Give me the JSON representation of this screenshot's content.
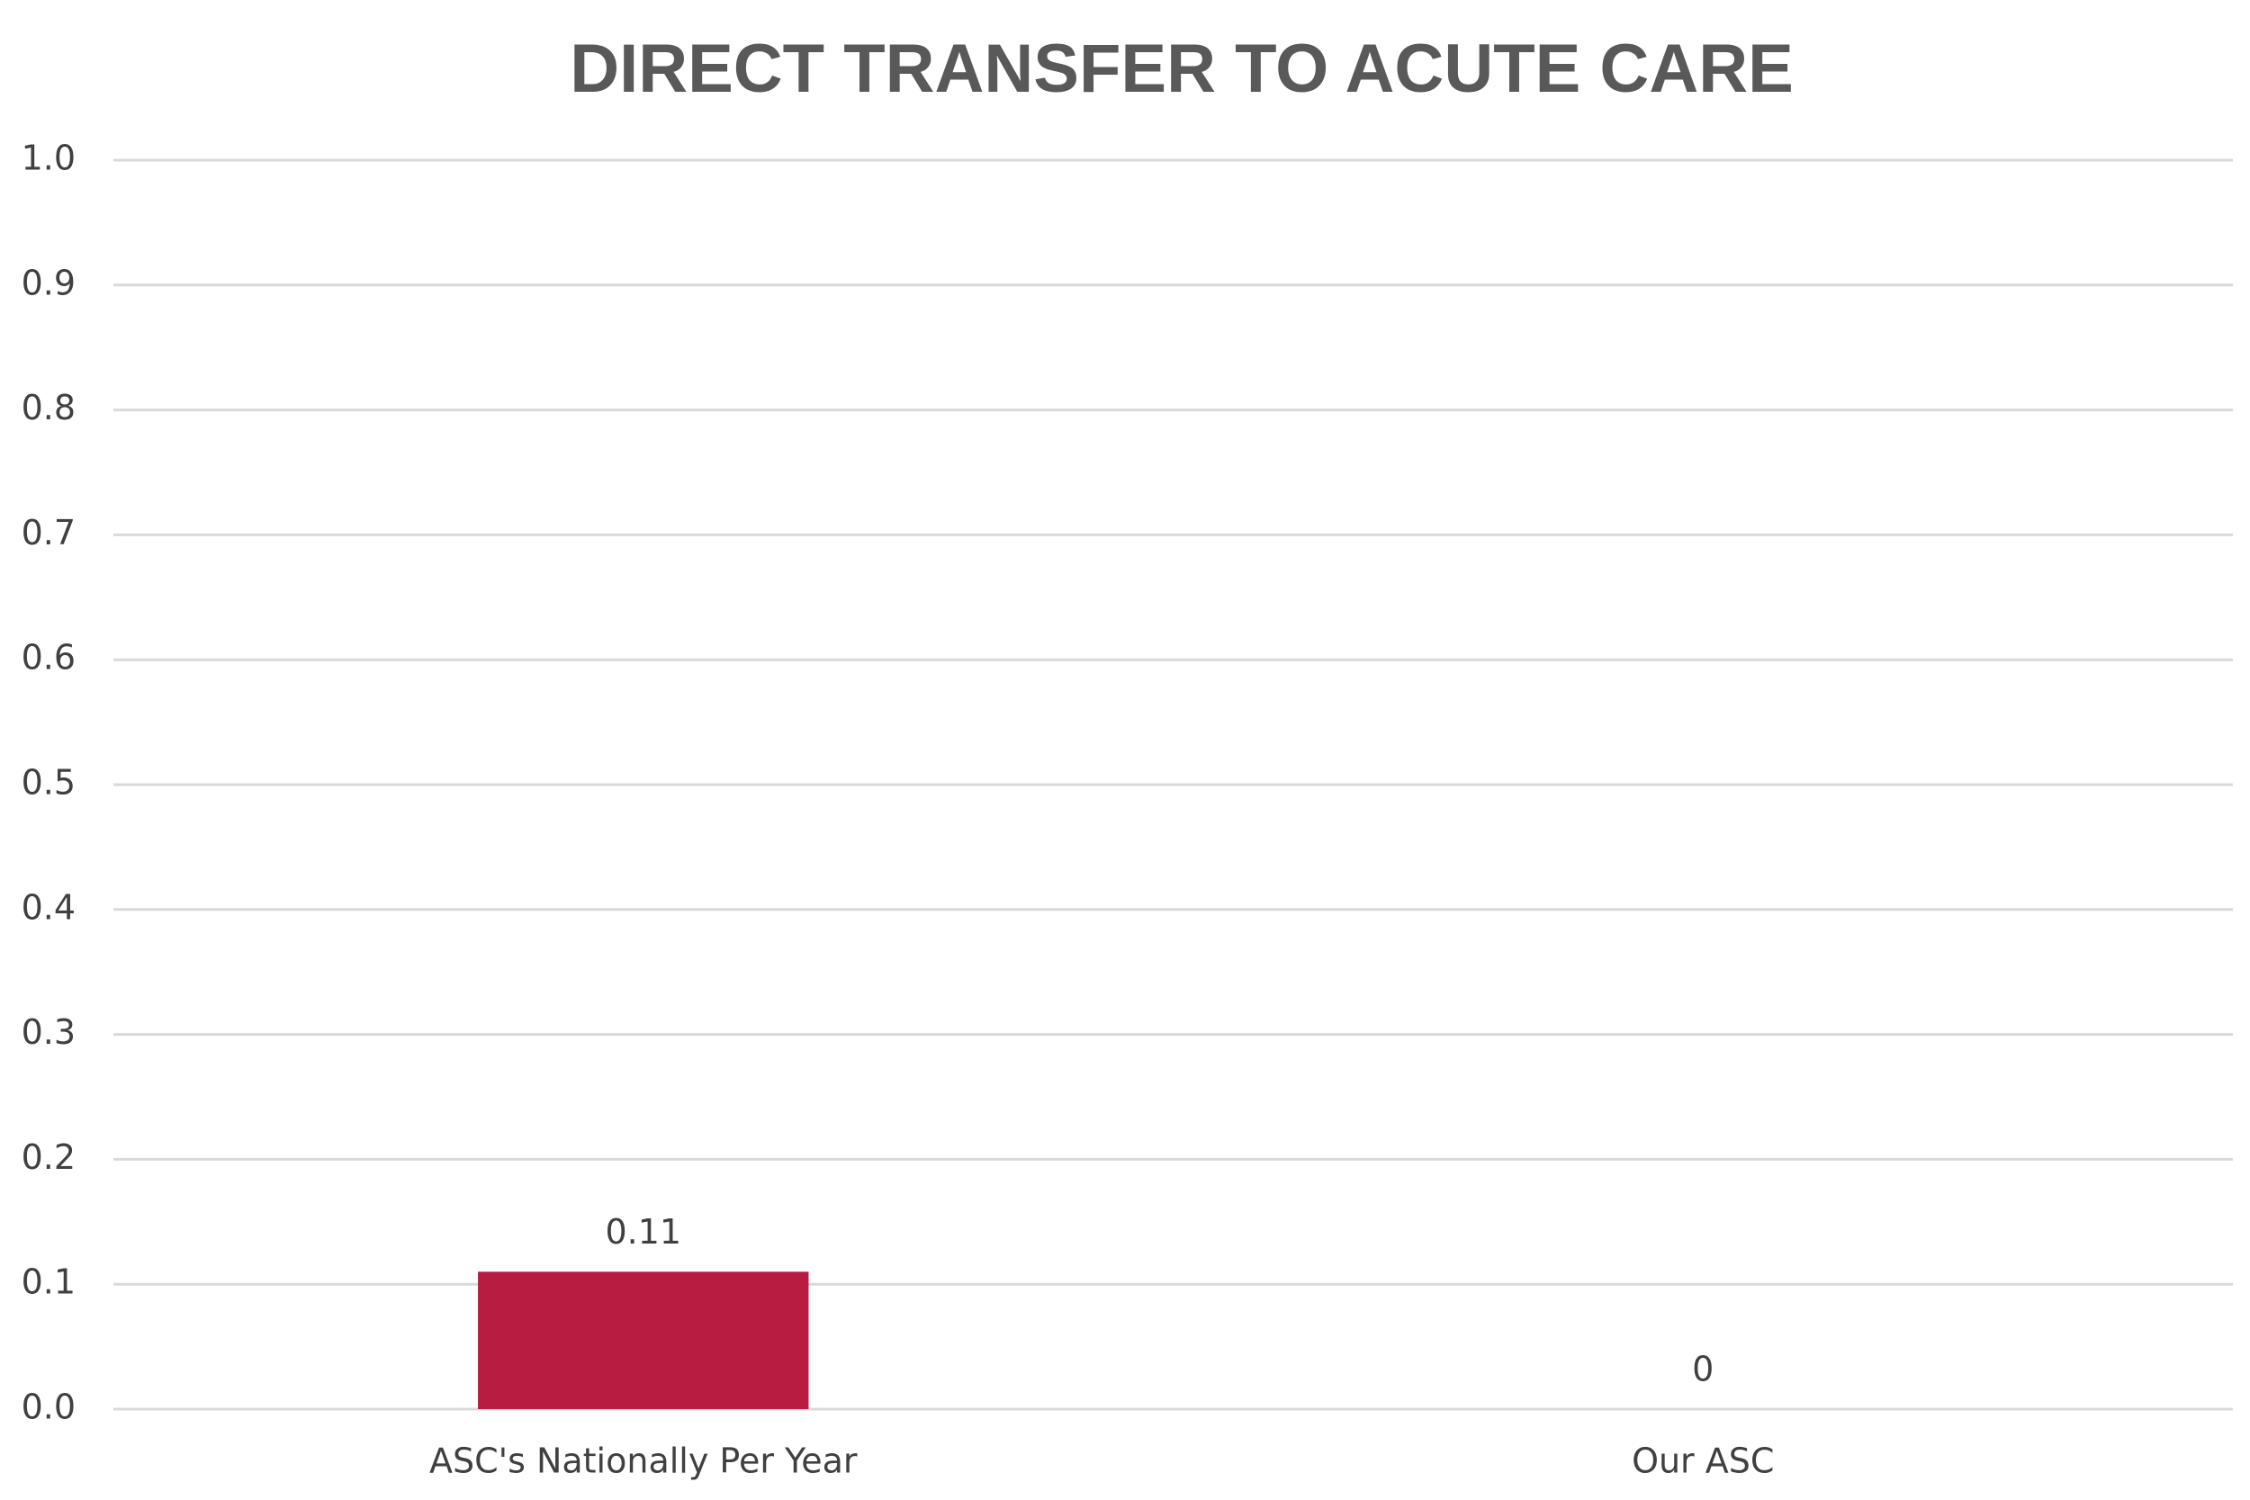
{
  "chart_data": {
    "type": "bar",
    "title": "DIRECT TRANSFER TO ACUTE CARE",
    "categories": [
      "ASC's Nationally Per Year",
      "Our ASC"
    ],
    "values": [
      0.11,
      0
    ],
    "color": "#b81c41",
    "ylim": [
      0,
      1
    ],
    "yticks": [
      {
        "value": 0,
        "label": "0.0"
      },
      0.1,
      0.2,
      0.3,
      0.4,
      0.5,
      0.6,
      0.7,
      0.8,
      0.9,
      {
        "value": 1,
        "label": "1.0"
      }
    ],
    "grid": true
  }
}
